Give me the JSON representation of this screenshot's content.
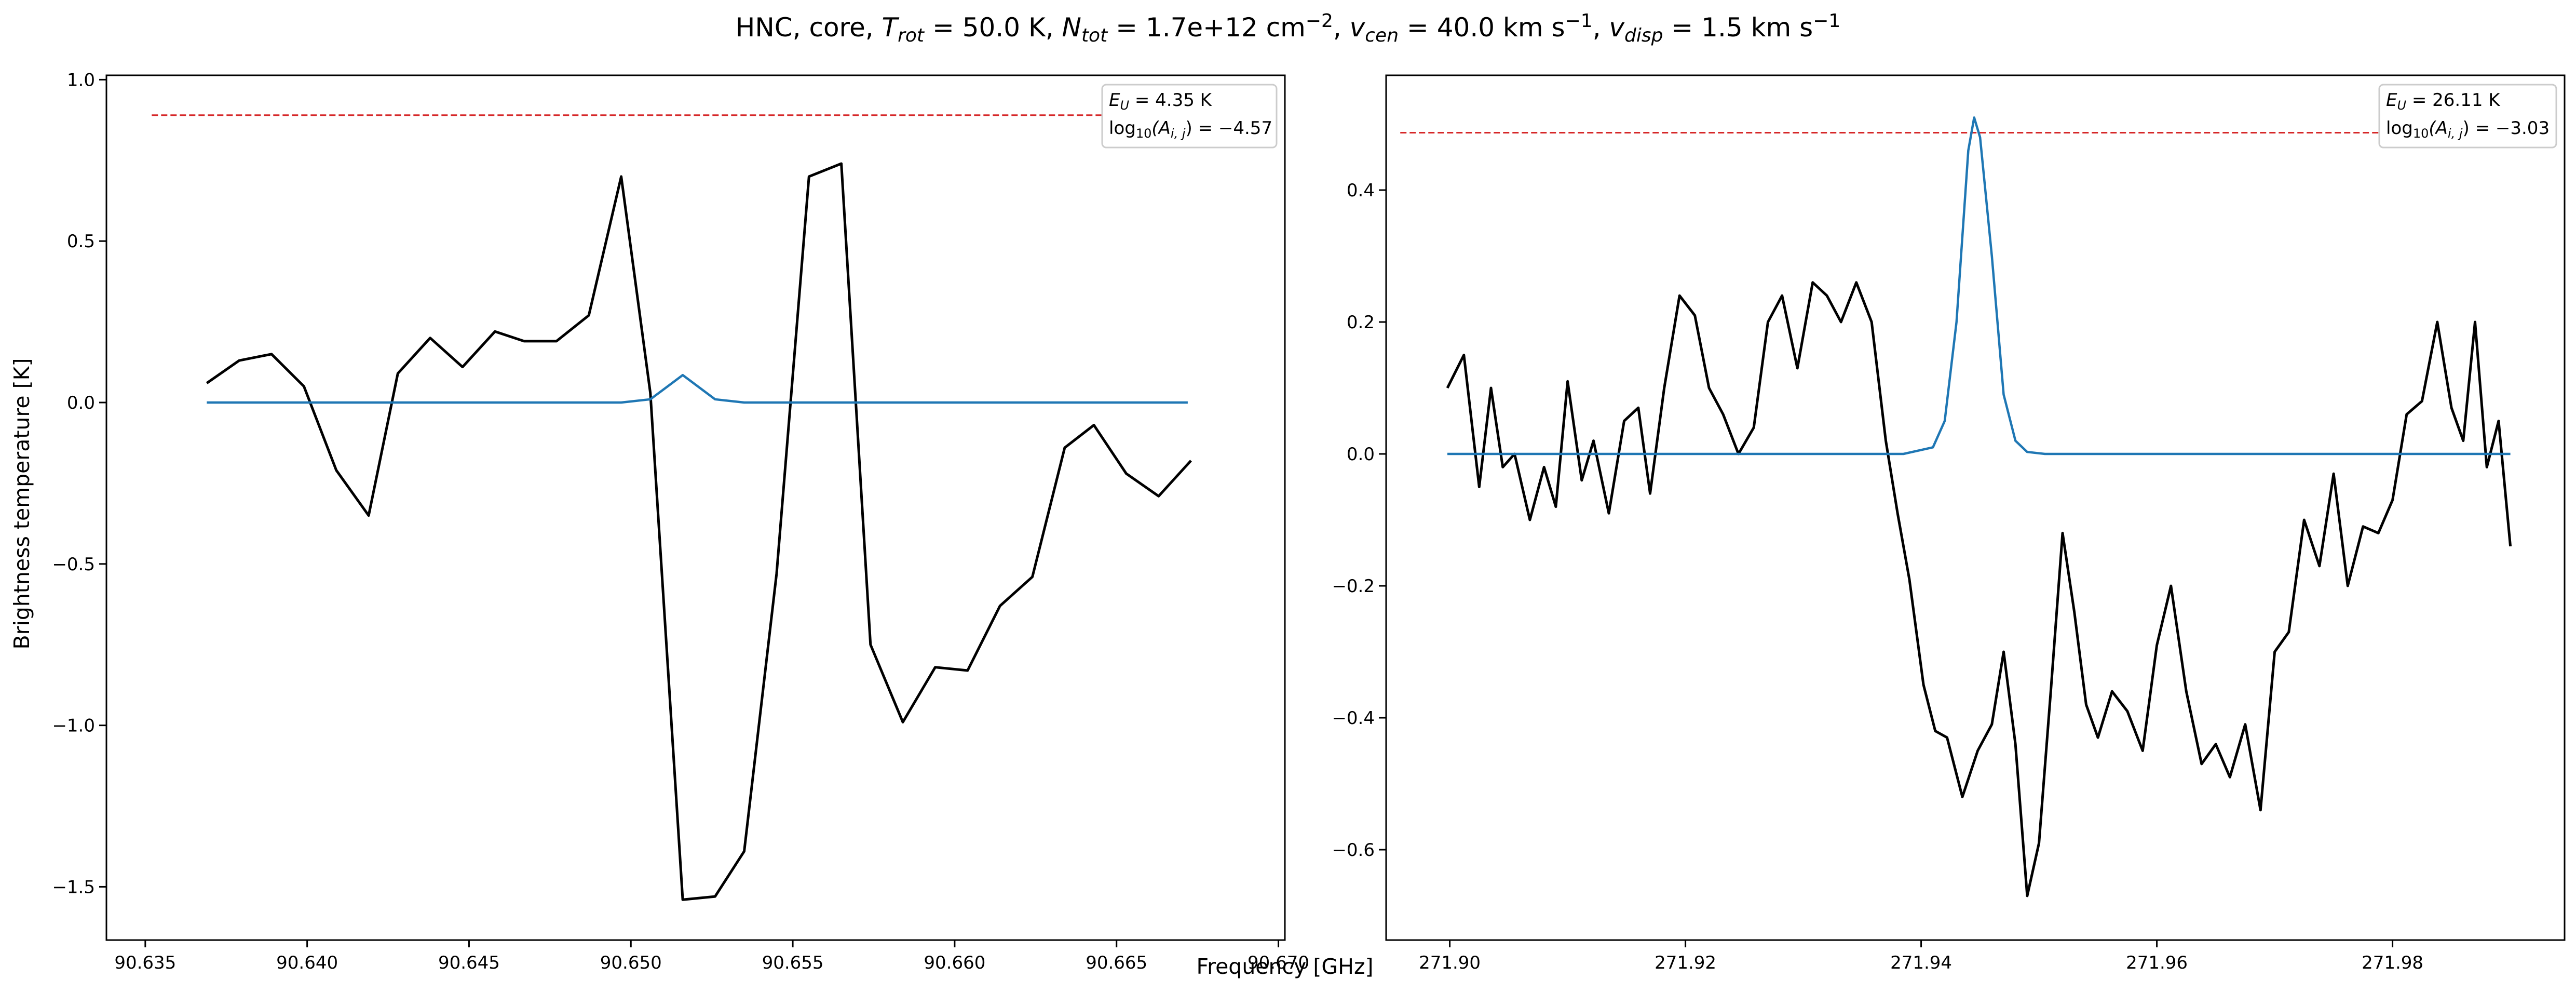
{
  "figure": {
    "title": "HNC, core, T_rot = 50.0 K, N_tot = 1.7e+12 cm^-2, v_cen = 40.0 km s^-1, v_disp = 1.5 km s^-1",
    "title_parts": {
      "species": "HNC, core, ",
      "trot_sym": "T",
      "trot_sub": "rot",
      "trot_val": " 50.0 K, ",
      "ntot_sym": "N",
      "ntot_sub": "tot",
      "ntot_val": " 1.7e+12 cm",
      "ntot_exp": "−2",
      "sep1": ", ",
      "vcen_sym": "v",
      "vcen_sub": "cen",
      "vcen_val": " 40.0 km s",
      "vcen_exp": "−1",
      "sep2": ", ",
      "vdisp_sym": "v",
      "vdisp_sub": "disp",
      "vdisp_val": " 1.5 km s",
      "vdisp_exp": "−1",
      "eq": " = "
    },
    "xlabel": "Frequency [GHz]",
    "ylabel": "Brightness temperature [K]"
  },
  "colors": {
    "observed": "#000000",
    "model": "#1f77b4",
    "threshold": "#d62728",
    "axes": "#000000"
  },
  "chart_data": [
    {
      "type": "line",
      "xlim": [
        90.6338,
        90.6702
      ],
      "ylim": [
        -1.665,
        1.0135
      ],
      "xticks": [
        90.635,
        90.64,
        90.645,
        90.65,
        90.655,
        90.66,
        90.665,
        90.67
      ],
      "xtick_labels": [
        "90.635",
        "90.640",
        "90.645",
        "90.650",
        "90.655",
        "90.660",
        "90.665",
        "90.670"
      ],
      "yticks": [
        -1.5,
        -1.0,
        -0.5,
        0.0,
        0.5,
        1.0
      ],
      "ytick_labels": [
        "−1.5",
        "−1.0",
        "−0.5",
        "0.0",
        "0.5",
        "1.0"
      ],
      "legend": {
        "placement": "top-right",
        "eu_sym": "E",
        "eu_sub": "U",
        "eu_val": " = 4.35 K",
        "aij_pre": "log",
        "aij_sub10": "10",
        "aij_open": "(A",
        "aij_sub": "i, j",
        "aij_val": ") = −4.57"
      },
      "threshold": {
        "y": 0.89,
        "x": [
          90.6352,
          90.667
        ]
      },
      "series": [
        {
          "role": "observed",
          "x": [
            90.6369,
            90.6379,
            90.6389,
            90.6399,
            90.6409,
            90.6419,
            90.6428,
            90.6438,
            90.6448,
            90.6458,
            90.6467,
            90.6477,
            90.6487,
            90.6497,
            90.6506,
            90.6516,
            90.6526,
            90.6535,
            90.6545,
            90.6555,
            90.6565,
            90.6574,
            90.6584,
            90.6594,
            90.6604,
            90.6614,
            90.6624,
            90.6634,
            90.6643,
            90.6653,
            90.6663,
            90.6673
          ],
          "y": [
            0.06,
            0.13,
            0.15,
            0.05,
            -0.21,
            -0.35,
            0.09,
            0.2,
            0.11,
            0.22,
            0.19,
            0.19,
            0.27,
            0.7,
            0.03,
            -1.54,
            -1.53,
            -1.39,
            -0.53,
            0.7,
            0.74,
            -0.75,
            -0.99,
            -0.82,
            -0.83,
            -0.63,
            -0.54,
            -0.14,
            -0.07,
            -0.22,
            -0.29,
            -0.18
          ]
        },
        {
          "role": "model",
          "x": [
            90.6369,
            90.6389,
            90.6409,
            90.6428,
            90.6448,
            90.6467,
            90.6487,
            90.6497,
            90.6506,
            90.6516,
            90.6526,
            90.6535,
            90.6545,
            90.6565,
            90.6584,
            90.6604,
            90.6624,
            90.6643,
            90.6663,
            90.6672
          ],
          "y": [
            0.0,
            0.0,
            0.0,
            0.0,
            0.0,
            0.0,
            0.0,
            0.0,
            0.01,
            0.085,
            0.01,
            0.0,
            0.0,
            0.0,
            0.0,
            0.0,
            0.0,
            0.0,
            0.0,
            0.0
          ]
        }
      ]
    },
    {
      "type": "line",
      "xlim": [
        271.8946,
        271.9946
      ],
      "ylim": [
        -0.737,
        0.574
      ],
      "xticks": [
        271.9,
        271.92,
        271.94,
        271.96,
        271.98
      ],
      "xtick_labels": [
        "271.90",
        "271.92",
        "271.94",
        "271.96",
        "271.98"
      ],
      "yticks": [
        -0.6,
        -0.4,
        -0.2,
        0.0,
        0.2,
        0.4
      ],
      "ytick_labels": [
        "−0.6",
        "−0.4",
        "−0.2",
        "0.0",
        "0.2",
        "0.4"
      ],
      "legend": {
        "placement": "top-right",
        "eu_sym": "E",
        "eu_sub": "U",
        "eu_val": " = 26.11 K",
        "aij_pre": "log",
        "aij_sub10": "10",
        "aij_open": "(A",
        "aij_sub": "i, j",
        "aij_val": ") = −3.03"
      },
      "threshold": {
        "y": 0.487,
        "x": [
          271.8958,
          271.99
        ]
      },
      "series": [
        {
          "role": "observed",
          "x": [
            271.8998,
            271.9012,
            271.9025,
            271.9035,
            271.9045,
            271.9055,
            271.9068,
            271.908,
            271.909,
            271.91,
            271.9112,
            271.9122,
            271.9135,
            271.9148,
            271.916,
            271.917,
            271.9182,
            271.9195,
            271.9208,
            271.922,
            271.9232,
            271.9245,
            271.9258,
            271.927,
            271.9282,
            271.9295,
            271.9308,
            271.932,
            271.9332,
            271.9345,
            271.9358,
            271.937,
            271.938,
            271.939,
            271.9402,
            271.9412,
            271.9422,
            271.9435,
            271.9448,
            271.946,
            271.947,
            271.948,
            271.949,
            271.95,
            271.951,
            271.952,
            271.953,
            271.954,
            271.955,
            271.9562,
            271.9575,
            271.9588,
            271.96,
            271.9612,
            271.9625,
            271.9638,
            271.965,
            271.9662,
            271.9675,
            271.9688,
            271.97,
            271.9712,
            271.9725,
            271.9738,
            271.975,
            271.9762,
            271.9775,
            271.9788,
            271.98,
            271.9812,
            271.9825,
            271.9838,
            271.985,
            271.986,
            271.987,
            271.988,
            271.989,
            271.99
          ],
          "y": [
            0.1,
            0.15,
            -0.05,
            0.1,
            -0.02,
            0.0,
            -0.1,
            -0.02,
            -0.08,
            0.11,
            -0.04,
            0.02,
            -0.09,
            0.05,
            0.07,
            -0.06,
            0.1,
            0.24,
            0.21,
            0.1,
            0.06,
            0.0,
            0.04,
            0.2,
            0.24,
            0.13,
            0.26,
            0.24,
            0.2,
            0.26,
            0.2,
            0.02,
            -0.09,
            -0.19,
            -0.35,
            -0.42,
            -0.43,
            -0.52,
            -0.45,
            -0.41,
            -0.3,
            -0.44,
            -0.67,
            -0.59,
            -0.36,
            -0.12,
            -0.24,
            -0.38,
            -0.43,
            -0.36,
            -0.39,
            -0.45,
            -0.29,
            -0.2,
            -0.36,
            -0.47,
            -0.44,
            -0.49,
            -0.41,
            -0.54,
            -0.3,
            -0.27,
            -0.1,
            -0.17,
            -0.03,
            -0.2,
            -0.11,
            -0.12,
            -0.07,
            0.06,
            0.08,
            0.2,
            0.07,
            0.02,
            0.2,
            -0.02,
            0.05,
            -0.14
          ]
        },
        {
          "role": "model",
          "x": [
            271.8998,
            271.93,
            271.9385,
            271.941,
            271.942,
            271.943,
            271.944,
            271.9445,
            271.945,
            271.946,
            271.947,
            271.948,
            271.949,
            271.9505,
            271.96,
            271.99
          ],
          "y": [
            0.0,
            0.0,
            0.0,
            0.01,
            0.05,
            0.2,
            0.46,
            0.51,
            0.48,
            0.3,
            0.09,
            0.02,
            0.003,
            0.0,
            0.0,
            0.0
          ]
        }
      ]
    }
  ]
}
